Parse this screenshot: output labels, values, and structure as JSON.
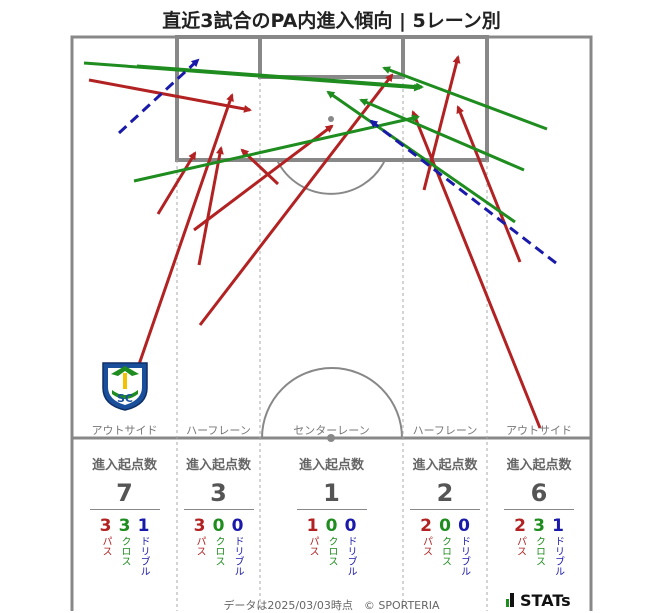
{
  "title": "直近3試合のPA内進入傾向 | 5レーン別",
  "lanes": [
    {
      "name": "アウトサイド",
      "header": "進入起点数",
      "total": "7",
      "pass": "3",
      "cross": "3",
      "dribble": "1"
    },
    {
      "name": "ハーフレーン",
      "header": "進入起点数",
      "total": "3",
      "pass": "3",
      "cross": "0",
      "dribble": "0"
    },
    {
      "name": "センターレーン",
      "header": "進入起点数",
      "total": "1",
      "pass": "1",
      "cross": "0",
      "dribble": "0"
    },
    {
      "name": "ハーフレーン",
      "header": "進入起点数",
      "total": "2",
      "pass": "2",
      "cross": "0",
      "dribble": "0"
    },
    {
      "name": "アウトサイド",
      "header": "進入起点数",
      "total": "6",
      "pass": "2",
      "cross": "3",
      "dribble": "1"
    }
  ],
  "legend": {
    "pass": "パス",
    "cross": "クロス",
    "dribble": "ドリブル"
  },
  "colors": {
    "pass": "#b22222",
    "cross": "#1e8c1e",
    "dribble": "#1a1aaa",
    "pitch_line": "#888888",
    "lane_line": "#aaaaaa"
  },
  "footer": {
    "date": "データは2025/03/03時点　© SPORTERIA",
    "brand": "STATs"
  },
  "emblem": {
    "text": "SC"
  }
}
